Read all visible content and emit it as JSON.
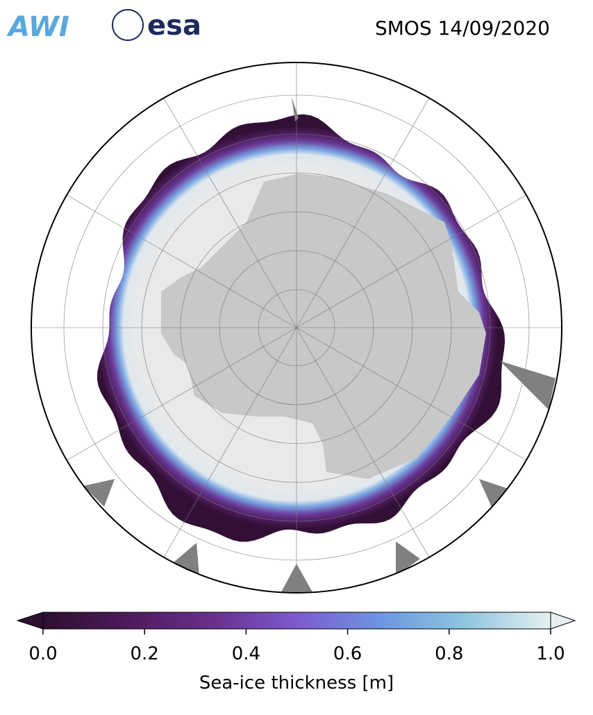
{
  "title": "SMOS 14/09/2020",
  "logos": [
    "AWI",
    "esa"
  ],
  "colorbar": {
    "label": "Sea-ice thickness [m]",
    "lim": [
      0,
      1
    ],
    "ticks": [
      {
        "value": 0,
        "label": "0.0"
      },
      {
        "value": 0.2,
        "label": "0.2"
      },
      {
        "value": 0.4,
        "label": "0.4"
      },
      {
        "value": 0.6,
        "label": "0.6"
      },
      {
        "value": 0.8,
        "label": "0.8"
      },
      {
        "value": 1,
        "label": "1.0"
      }
    ],
    "colors": [
      "#2d0f2e",
      "#4e1a5c",
      "#6a2e8c",
      "#7c5bd0",
      "#6d96e2",
      "#8ec6e0",
      "#e6f0f0"
    ]
  }
}
